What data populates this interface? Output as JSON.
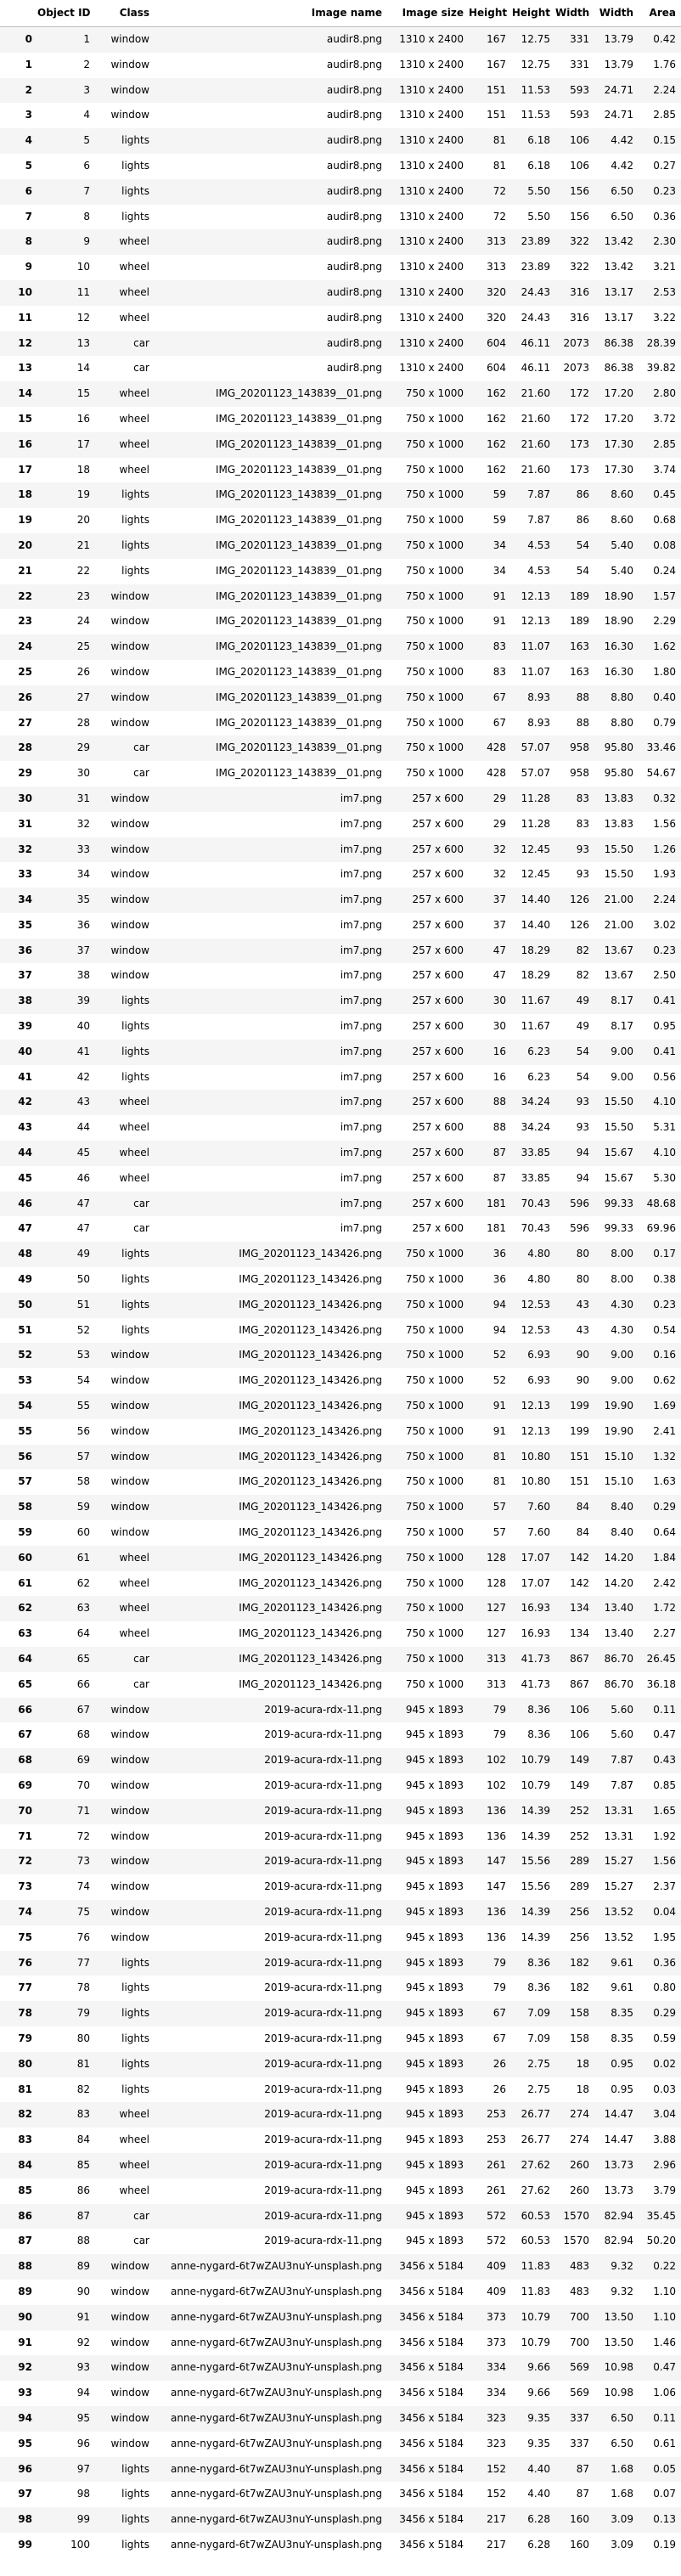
{
  "columns": [
    "",
    "Object ID",
    "Class",
    "Image name",
    "Image size",
    "Height",
    "Height",
    "Width",
    "Width",
    "Area"
  ],
  "rows": [
    [
      "0",
      "1",
      "window",
      "audir8.png",
      "1310 x 2400",
      "167",
      "12.75",
      "331",
      "13.79",
      "0.42"
    ],
    [
      "1",
      "2",
      "window",
      "audir8.png",
      "1310 x 2400",
      "167",
      "12.75",
      "331",
      "13.79",
      "1.76"
    ],
    [
      "2",
      "3",
      "window",
      "audir8.png",
      "1310 x 2400",
      "151",
      "11.53",
      "593",
      "24.71",
      "2.24"
    ],
    [
      "3",
      "4",
      "window",
      "audir8.png",
      "1310 x 2400",
      "151",
      "11.53",
      "593",
      "24.71",
      "2.85"
    ],
    [
      "4",
      "5",
      "lights",
      "audir8.png",
      "1310 x 2400",
      "81",
      "6.18",
      "106",
      "4.42",
      "0.15"
    ],
    [
      "5",
      "6",
      "lights",
      "audir8.png",
      "1310 x 2400",
      "81",
      "6.18",
      "106",
      "4.42",
      "0.27"
    ],
    [
      "6",
      "7",
      "lights",
      "audir8.png",
      "1310 x 2400",
      "72",
      "5.50",
      "156",
      "6.50",
      "0.23"
    ],
    [
      "7",
      "8",
      "lights",
      "audir8.png",
      "1310 x 2400",
      "72",
      "5.50",
      "156",
      "6.50",
      "0.36"
    ],
    [
      "8",
      "9",
      "wheel",
      "audir8.png",
      "1310 x 2400",
      "313",
      "23.89",
      "322",
      "13.42",
      "2.30"
    ],
    [
      "9",
      "10",
      "wheel",
      "audir8.png",
      "1310 x 2400",
      "313",
      "23.89",
      "322",
      "13.42",
      "3.21"
    ],
    [
      "10",
      "11",
      "wheel",
      "audir8.png",
      "1310 x 2400",
      "320",
      "24.43",
      "316",
      "13.17",
      "2.53"
    ],
    [
      "11",
      "12",
      "wheel",
      "audir8.png",
      "1310 x 2400",
      "320",
      "24.43",
      "316",
      "13.17",
      "3.22"
    ],
    [
      "12",
      "13",
      "car",
      "audir8.png",
      "1310 x 2400",
      "604",
      "46.11",
      "2073",
      "86.38",
      "28.39"
    ],
    [
      "13",
      "14",
      "car",
      "audir8.png",
      "1310 x 2400",
      "604",
      "46.11",
      "2073",
      "86.38",
      "39.82"
    ],
    [
      "14",
      "15",
      "wheel",
      "IMG_20201123_143839__01.png",
      "750 x 1000",
      "162",
      "21.60",
      "172",
      "17.20",
      "2.80"
    ],
    [
      "15",
      "16",
      "wheel",
      "IMG_20201123_143839__01.png",
      "750 x 1000",
      "162",
      "21.60",
      "172",
      "17.20",
      "3.72"
    ],
    [
      "16",
      "17",
      "wheel",
      "IMG_20201123_143839__01.png",
      "750 x 1000",
      "162",
      "21.60",
      "173",
      "17.30",
      "2.85"
    ],
    [
      "17",
      "18",
      "wheel",
      "IMG_20201123_143839__01.png",
      "750 x 1000",
      "162",
      "21.60",
      "173",
      "17.30",
      "3.74"
    ],
    [
      "18",
      "19",
      "lights",
      "IMG_20201123_143839__01.png",
      "750 x 1000",
      "59",
      "7.87",
      "86",
      "8.60",
      "0.45"
    ],
    [
      "19",
      "20",
      "lights",
      "IMG_20201123_143839__01.png",
      "750 x 1000",
      "59",
      "7.87",
      "86",
      "8.60",
      "0.68"
    ],
    [
      "20",
      "21",
      "lights",
      "IMG_20201123_143839__01.png",
      "750 x 1000",
      "34",
      "4.53",
      "54",
      "5.40",
      "0.08"
    ],
    [
      "21",
      "22",
      "lights",
      "IMG_20201123_143839__01.png",
      "750 x 1000",
      "34",
      "4.53",
      "54",
      "5.40",
      "0.24"
    ],
    [
      "22",
      "23",
      "window",
      "IMG_20201123_143839__01.png",
      "750 x 1000",
      "91",
      "12.13",
      "189",
      "18.90",
      "1.57"
    ],
    [
      "23",
      "24",
      "window",
      "IMG_20201123_143839__01.png",
      "750 x 1000",
      "91",
      "12.13",
      "189",
      "18.90",
      "2.29"
    ],
    [
      "24",
      "25",
      "window",
      "IMG_20201123_143839__01.png",
      "750 x 1000",
      "83",
      "11.07",
      "163",
      "16.30",
      "1.62"
    ],
    [
      "25",
      "26",
      "window",
      "IMG_20201123_143839__01.png",
      "750 x 1000",
      "83",
      "11.07",
      "163",
      "16.30",
      "1.80"
    ],
    [
      "26",
      "27",
      "window",
      "IMG_20201123_143839__01.png",
      "750 x 1000",
      "67",
      "8.93",
      "88",
      "8.80",
      "0.40"
    ],
    [
      "27",
      "28",
      "window",
      "IMG_20201123_143839__01.png",
      "750 x 1000",
      "67",
      "8.93",
      "88",
      "8.80",
      "0.79"
    ],
    [
      "28",
      "29",
      "car",
      "IMG_20201123_143839__01.png",
      "750 x 1000",
      "428",
      "57.07",
      "958",
      "95.80",
      "33.46"
    ],
    [
      "29",
      "30",
      "car",
      "IMG_20201123_143839__01.png",
      "750 x 1000",
      "428",
      "57.07",
      "958",
      "95.80",
      "54.67"
    ],
    [
      "30",
      "31",
      "window",
      "im7.png",
      "257 x 600",
      "29",
      "11.28",
      "83",
      "13.83",
      "0.32"
    ],
    [
      "31",
      "32",
      "window",
      "im7.png",
      "257 x 600",
      "29",
      "11.28",
      "83",
      "13.83",
      "1.56"
    ],
    [
      "32",
      "33",
      "window",
      "im7.png",
      "257 x 600",
      "32",
      "12.45",
      "93",
      "15.50",
      "1.26"
    ],
    [
      "33",
      "34",
      "window",
      "im7.png",
      "257 x 600",
      "32",
      "12.45",
      "93",
      "15.50",
      "1.93"
    ],
    [
      "34",
      "35",
      "window",
      "im7.png",
      "257 x 600",
      "37",
      "14.40",
      "126",
      "21.00",
      "2.24"
    ],
    [
      "35",
      "36",
      "window",
      "im7.png",
      "257 x 600",
      "37",
      "14.40",
      "126",
      "21.00",
      "3.02"
    ],
    [
      "36",
      "37",
      "window",
      "im7.png",
      "257 x 600",
      "47",
      "18.29",
      "82",
      "13.67",
      "0.23"
    ],
    [
      "37",
      "38",
      "window",
      "im7.png",
      "257 x 600",
      "47",
      "18.29",
      "82",
      "13.67",
      "2.50"
    ],
    [
      "38",
      "39",
      "lights",
      "im7.png",
      "257 x 600",
      "30",
      "11.67",
      "49",
      "8.17",
      "0.41"
    ],
    [
      "39",
      "40",
      "lights",
      "im7.png",
      "257 x 600",
      "30",
      "11.67",
      "49",
      "8.17",
      "0.95"
    ],
    [
      "40",
      "41",
      "lights",
      "im7.png",
      "257 x 600",
      "16",
      "6.23",
      "54",
      "9.00",
      "0.41"
    ],
    [
      "41",
      "42",
      "lights",
      "im7.png",
      "257 x 600",
      "16",
      "6.23",
      "54",
      "9.00",
      "0.56"
    ],
    [
      "42",
      "43",
      "wheel",
      "im7.png",
      "257 x 600",
      "88",
      "34.24",
      "93",
      "15.50",
      "4.10"
    ],
    [
      "43",
      "44",
      "wheel",
      "im7.png",
      "257 x 600",
      "88",
      "34.24",
      "93",
      "15.50",
      "5.31"
    ],
    [
      "44",
      "45",
      "wheel",
      "im7.png",
      "257 x 600",
      "87",
      "33.85",
      "94",
      "15.67",
      "4.10"
    ],
    [
      "45",
      "46",
      "wheel",
      "im7.png",
      "257 x 600",
      "87",
      "33.85",
      "94",
      "15.67",
      "5.30"
    ],
    [
      "46",
      "47",
      "car",
      "im7.png",
      "257 x 600",
      "181",
      "70.43",
      "596",
      "99.33",
      "48.68"
    ],
    [
      "47",
      "47",
      "car",
      "im7.png",
      "257 x 600",
      "181",
      "70.43",
      "596",
      "99.33",
      "69.96"
    ],
    [
      "48",
      "49",
      "lights",
      "IMG_20201123_143426.png",
      "750 x 1000",
      "36",
      "4.80",
      "80",
      "8.00",
      "0.17"
    ],
    [
      "49",
      "50",
      "lights",
      "IMG_20201123_143426.png",
      "750 x 1000",
      "36",
      "4.80",
      "80",
      "8.00",
      "0.38"
    ],
    [
      "50",
      "51",
      "lights",
      "IMG_20201123_143426.png",
      "750 x 1000",
      "94",
      "12.53",
      "43",
      "4.30",
      "0.23"
    ],
    [
      "51",
      "52",
      "lights",
      "IMG_20201123_143426.png",
      "750 x 1000",
      "94",
      "12.53",
      "43",
      "4.30",
      "0.54"
    ],
    [
      "52",
      "53",
      "window",
      "IMG_20201123_143426.png",
      "750 x 1000",
      "52",
      "6.93",
      "90",
      "9.00",
      "0.16"
    ],
    [
      "53",
      "54",
      "window",
      "IMG_20201123_143426.png",
      "750 x 1000",
      "52",
      "6.93",
      "90",
      "9.00",
      "0.62"
    ],
    [
      "54",
      "55",
      "window",
      "IMG_20201123_143426.png",
      "750 x 1000",
      "91",
      "12.13",
      "199",
      "19.90",
      "1.69"
    ],
    [
      "55",
      "56",
      "window",
      "IMG_20201123_143426.png",
      "750 x 1000",
      "91",
      "12.13",
      "199",
      "19.90",
      "2.41"
    ],
    [
      "56",
      "57",
      "window",
      "IMG_20201123_143426.png",
      "750 x 1000",
      "81",
      "10.80",
      "151",
      "15.10",
      "1.32"
    ],
    [
      "57",
      "58",
      "window",
      "IMG_20201123_143426.png",
      "750 x 1000",
      "81",
      "10.80",
      "151",
      "15.10",
      "1.63"
    ],
    [
      "58",
      "59",
      "window",
      "IMG_20201123_143426.png",
      "750 x 1000",
      "57",
      "7.60",
      "84",
      "8.40",
      "0.29"
    ],
    [
      "59",
      "60",
      "window",
      "IMG_20201123_143426.png",
      "750 x 1000",
      "57",
      "7.60",
      "84",
      "8.40",
      "0.64"
    ],
    [
      "60",
      "61",
      "wheel",
      "IMG_20201123_143426.png",
      "750 x 1000",
      "128",
      "17.07",
      "142",
      "14.20",
      "1.84"
    ],
    [
      "61",
      "62",
      "wheel",
      "IMG_20201123_143426.png",
      "750 x 1000",
      "128",
      "17.07",
      "142",
      "14.20",
      "2.42"
    ],
    [
      "62",
      "63",
      "wheel",
      "IMG_20201123_143426.png",
      "750 x 1000",
      "127",
      "16.93",
      "134",
      "13.40",
      "1.72"
    ],
    [
      "63",
      "64",
      "wheel",
      "IMG_20201123_143426.png",
      "750 x 1000",
      "127",
      "16.93",
      "134",
      "13.40",
      "2.27"
    ],
    [
      "64",
      "65",
      "car",
      "IMG_20201123_143426.png",
      "750 x 1000",
      "313",
      "41.73",
      "867",
      "86.70",
      "26.45"
    ],
    [
      "65",
      "66",
      "car",
      "IMG_20201123_143426.png",
      "750 x 1000",
      "313",
      "41.73",
      "867",
      "86.70",
      "36.18"
    ],
    [
      "66",
      "67",
      "window",
      "2019-acura-rdx-11.png",
      "945 x 1893",
      "79",
      "8.36",
      "106",
      "5.60",
      "0.11"
    ],
    [
      "67",
      "68",
      "window",
      "2019-acura-rdx-11.png",
      "945 x 1893",
      "79",
      "8.36",
      "106",
      "5.60",
      "0.47"
    ],
    [
      "68",
      "69",
      "window",
      "2019-acura-rdx-11.png",
      "945 x 1893",
      "102",
      "10.79",
      "149",
      "7.87",
      "0.43"
    ],
    [
      "69",
      "70",
      "window",
      "2019-acura-rdx-11.png",
      "945 x 1893",
      "102",
      "10.79",
      "149",
      "7.87",
      "0.85"
    ],
    [
      "70",
      "71",
      "window",
      "2019-acura-rdx-11.png",
      "945 x 1893",
      "136",
      "14.39",
      "252",
      "13.31",
      "1.65"
    ],
    [
      "71",
      "72",
      "window",
      "2019-acura-rdx-11.png",
      "945 x 1893",
      "136",
      "14.39",
      "252",
      "13.31",
      "1.92"
    ],
    [
      "72",
      "73",
      "window",
      "2019-acura-rdx-11.png",
      "945 x 1893",
      "147",
      "15.56",
      "289",
      "15.27",
      "1.56"
    ],
    [
      "73",
      "74",
      "window",
      "2019-acura-rdx-11.png",
      "945 x 1893",
      "147",
      "15.56",
      "289",
      "15.27",
      "2.37"
    ],
    [
      "74",
      "75",
      "window",
      "2019-acura-rdx-11.png",
      "945 x 1893",
      "136",
      "14.39",
      "256",
      "13.52",
      "0.04"
    ],
    [
      "75",
      "76",
      "window",
      "2019-acura-rdx-11.png",
      "945 x 1893",
      "136",
      "14.39",
      "256",
      "13.52",
      "1.95"
    ],
    [
      "76",
      "77",
      "lights",
      "2019-acura-rdx-11.png",
      "945 x 1893",
      "79",
      "8.36",
      "182",
      "9.61",
      "0.36"
    ],
    [
      "77",
      "78",
      "lights",
      "2019-acura-rdx-11.png",
      "945 x 1893",
      "79",
      "8.36",
      "182",
      "9.61",
      "0.80"
    ],
    [
      "78",
      "79",
      "lights",
      "2019-acura-rdx-11.png",
      "945 x 1893",
      "67",
      "7.09",
      "158",
      "8.35",
      "0.29"
    ],
    [
      "79",
      "80",
      "lights",
      "2019-acura-rdx-11.png",
      "945 x 1893",
      "67",
      "7.09",
      "158",
      "8.35",
      "0.59"
    ],
    [
      "80",
      "81",
      "lights",
      "2019-acura-rdx-11.png",
      "945 x 1893",
      "26",
      "2.75",
      "18",
      "0.95",
      "0.02"
    ],
    [
      "81",
      "82",
      "lights",
      "2019-acura-rdx-11.png",
      "945 x 1893",
      "26",
      "2.75",
      "18",
      "0.95",
      "0.03"
    ],
    [
      "82",
      "83",
      "wheel",
      "2019-acura-rdx-11.png",
      "945 x 1893",
      "253",
      "26.77",
      "274",
      "14.47",
      "3.04"
    ],
    [
      "83",
      "84",
      "wheel",
      "2019-acura-rdx-11.png",
      "945 x 1893",
      "253",
      "26.77",
      "274",
      "14.47",
      "3.88"
    ],
    [
      "84",
      "85",
      "wheel",
      "2019-acura-rdx-11.png",
      "945 x 1893",
      "261",
      "27.62",
      "260",
      "13.73",
      "2.96"
    ],
    [
      "85",
      "86",
      "wheel",
      "2019-acura-rdx-11.png",
      "945 x 1893",
      "261",
      "27.62",
      "260",
      "13.73",
      "3.79"
    ],
    [
      "86",
      "87",
      "car",
      "2019-acura-rdx-11.png",
      "945 x 1893",
      "572",
      "60.53",
      "1570",
      "82.94",
      "35.45"
    ],
    [
      "87",
      "88",
      "car",
      "2019-acura-rdx-11.png",
      "945 x 1893",
      "572",
      "60.53",
      "1570",
      "82.94",
      "50.20"
    ],
    [
      "88",
      "89",
      "window",
      "anne-nygard-6t7wZAU3nuY-unsplash.png",
      "3456 x 5184",
      "409",
      "11.83",
      "483",
      "9.32",
      "0.22"
    ],
    [
      "89",
      "90",
      "window",
      "anne-nygard-6t7wZAU3nuY-unsplash.png",
      "3456 x 5184",
      "409",
      "11.83",
      "483",
      "9.32",
      "1.10"
    ],
    [
      "90",
      "91",
      "window",
      "anne-nygard-6t7wZAU3nuY-unsplash.png",
      "3456 x 5184",
      "373",
      "10.79",
      "700",
      "13.50",
      "1.10"
    ],
    [
      "91",
      "92",
      "window",
      "anne-nygard-6t7wZAU3nuY-unsplash.png",
      "3456 x 5184",
      "373",
      "10.79",
      "700",
      "13.50",
      "1.46"
    ],
    [
      "92",
      "93",
      "window",
      "anne-nygard-6t7wZAU3nuY-unsplash.png",
      "3456 x 5184",
      "334",
      "9.66",
      "569",
      "10.98",
      "0.47"
    ],
    [
      "93",
      "94",
      "window",
      "anne-nygard-6t7wZAU3nuY-unsplash.png",
      "3456 x 5184",
      "334",
      "9.66",
      "569",
      "10.98",
      "1.06"
    ],
    [
      "94",
      "95",
      "window",
      "anne-nygard-6t7wZAU3nuY-unsplash.png",
      "3456 x 5184",
      "323",
      "9.35",
      "337",
      "6.50",
      "0.11"
    ],
    [
      "95",
      "96",
      "window",
      "anne-nygard-6t7wZAU3nuY-unsplash.png",
      "3456 x 5184",
      "323",
      "9.35",
      "337",
      "6.50",
      "0.61"
    ],
    [
      "96",
      "97",
      "lights",
      "anne-nygard-6t7wZAU3nuY-unsplash.png",
      "3456 x 5184",
      "152",
      "4.40",
      "87",
      "1.68",
      "0.05"
    ],
    [
      "97",
      "98",
      "lights",
      "anne-nygard-6t7wZAU3nuY-unsplash.png",
      "3456 x 5184",
      "152",
      "4.40",
      "87",
      "1.68",
      "0.07"
    ],
    [
      "98",
      "99",
      "lights",
      "anne-nygard-6t7wZAU3nuY-unsplash.png",
      "3456 x 5184",
      "217",
      "6.28",
      "160",
      "3.09",
      "0.13"
    ],
    [
      "99",
      "100",
      "lights",
      "anne-nygard-6t7wZAU3nuY-unsplash.png",
      "3456 x 5184",
      "217",
      "6.28",
      "160",
      "3.09",
      "0.19"
    ]
  ]
}
